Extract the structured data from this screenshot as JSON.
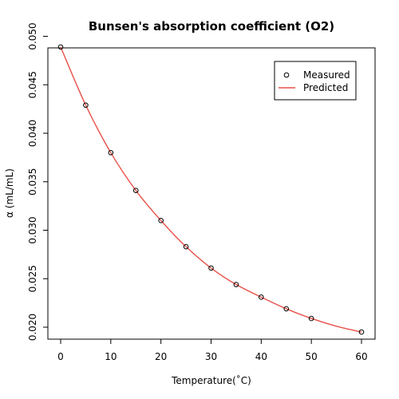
{
  "chart_data": {
    "type": "scatter",
    "title": "Bunsen's absorption coefficient (O2)",
    "xlabel": "Temperature(˚C)",
    "ylabel": "α (mL/mL)",
    "xlim": [
      0,
      60
    ],
    "ylim": [
      0.0195,
      0.0501
    ],
    "x_ticks": [
      0,
      10,
      20,
      30,
      40,
      50,
      60
    ],
    "y_ticks": [
      0.02,
      0.025,
      0.03,
      0.035,
      0.04,
      0.045,
      0.05
    ],
    "y_tick_labels": [
      "0.020",
      "0.025",
      "0.030",
      "0.035",
      "0.040",
      "0.045",
      "0.050"
    ],
    "grid": false,
    "legend_position": "top-right",
    "series": [
      {
        "name": "Measured",
        "kind": "points",
        "marker": "open-circle",
        "color": "#000000",
        "x": [
          0,
          5,
          10,
          15,
          20,
          25,
          30,
          35,
          40,
          45,
          50,
          60
        ],
        "y": [
          0.0489,
          0.0429,
          0.038,
          0.0341,
          0.031,
          0.0283,
          0.0261,
          0.0244,
          0.0231,
          0.0219,
          0.0209,
          0.0195
        ]
      },
      {
        "name": "Predicted",
        "kind": "line",
        "color": "#e8514a",
        "x": [
          0,
          5,
          10,
          15,
          20,
          25,
          30,
          35,
          40,
          45,
          50,
          55,
          60
        ],
        "y": [
          0.0489,
          0.0429,
          0.038,
          0.0341,
          0.031,
          0.0283,
          0.0261,
          0.0244,
          0.0231,
          0.0219,
          0.0209,
          0.0201,
          0.0195
        ]
      }
    ]
  }
}
